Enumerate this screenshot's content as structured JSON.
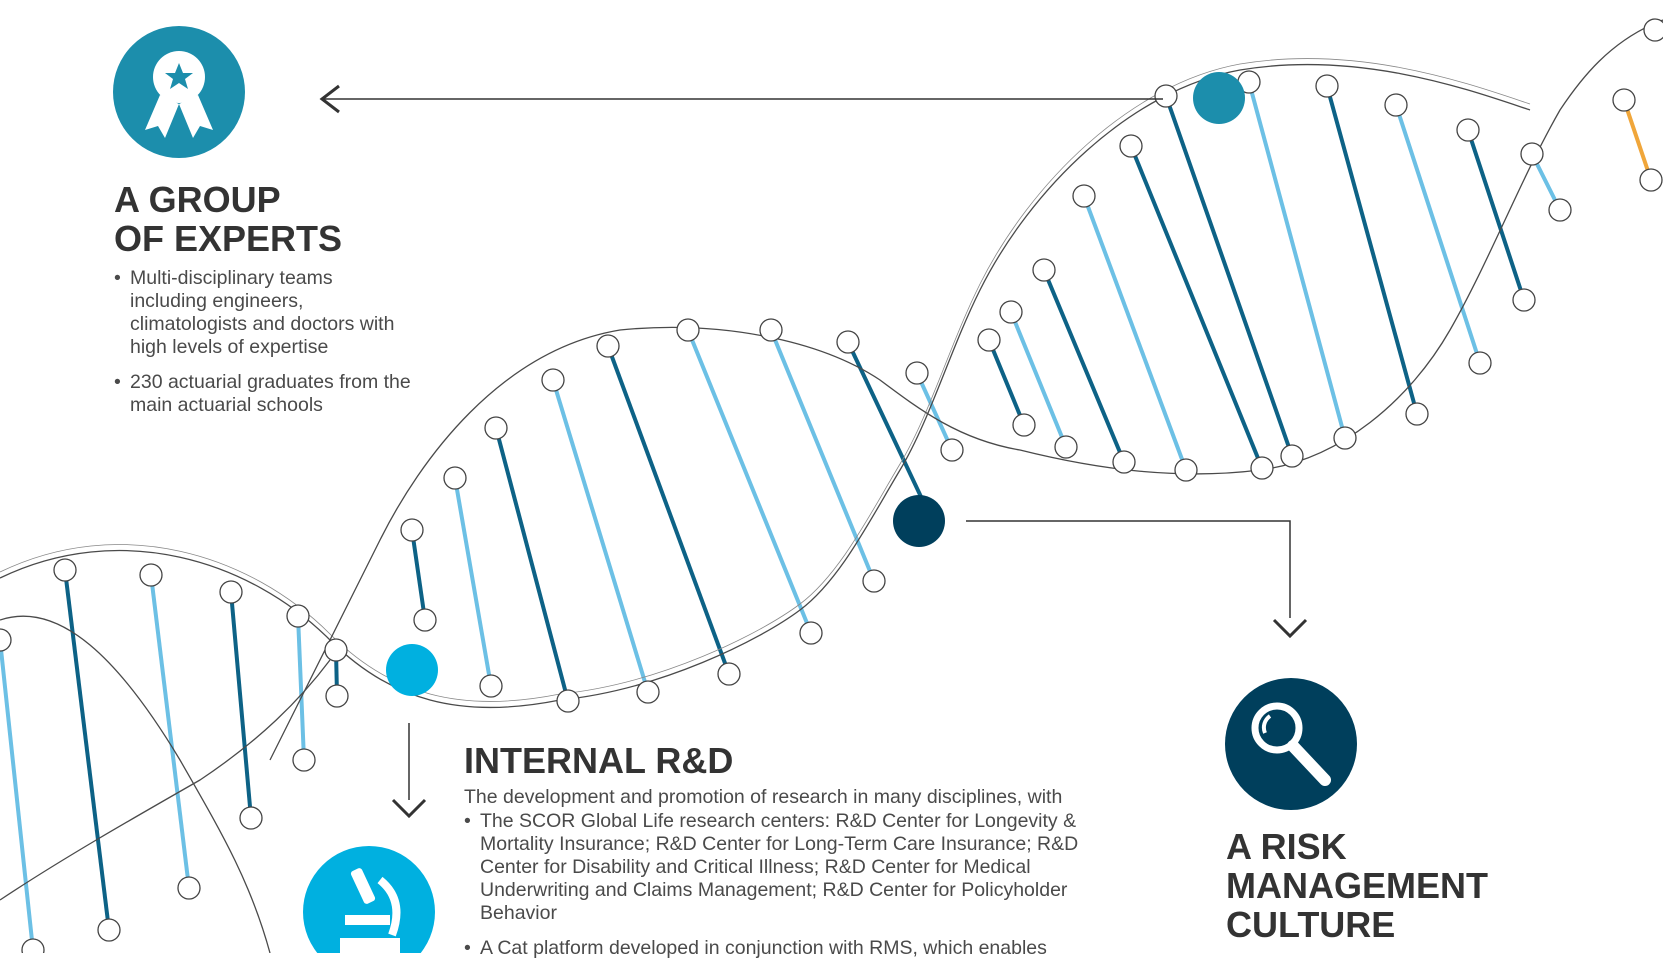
{
  "sections": {
    "experts": {
      "title_line1": "A GROUP",
      "title_line2": "OF EXPERTS",
      "bullets": [
        "Multi-disciplinary teams including engineers, climatologists and doctors with high levels of expertise",
        "230 actuarial graduates from the main actuarial schools"
      ],
      "icon": "award-ribbon-icon",
      "color": "#1c8eac"
    },
    "rnd": {
      "title": "INTERNAL R&D",
      "intro": "The development and promotion of research in many disciplines, with",
      "bullets": [
        "The SCOR Global Life research centers: R&D Center for Longevity & Mortality Insurance; R&D Center for Long-Term Care Insurance; R&D Center for Disability and Critical Illness; R&D Center for Medical Underwriting and Claims Management; R&D Center for Policyholder Behavior",
        "A Cat platform developed in conjunction with RMS, which enables"
      ],
      "icon": "microscope-icon",
      "color": "#00b0e0"
    },
    "risk": {
      "title_line1": "A RISK",
      "title_line2": "MANAGEMENT",
      "title_line3": "CULTURE",
      "icon": "magnifying-glass-icon",
      "color": "#003f5c"
    }
  },
  "colors": {
    "rung_dark": "#0d6286",
    "rung_light": "#6cc0e5",
    "accent_orange": "#f0a63a",
    "node_fill": "#ffffff",
    "strand": "#555555"
  }
}
